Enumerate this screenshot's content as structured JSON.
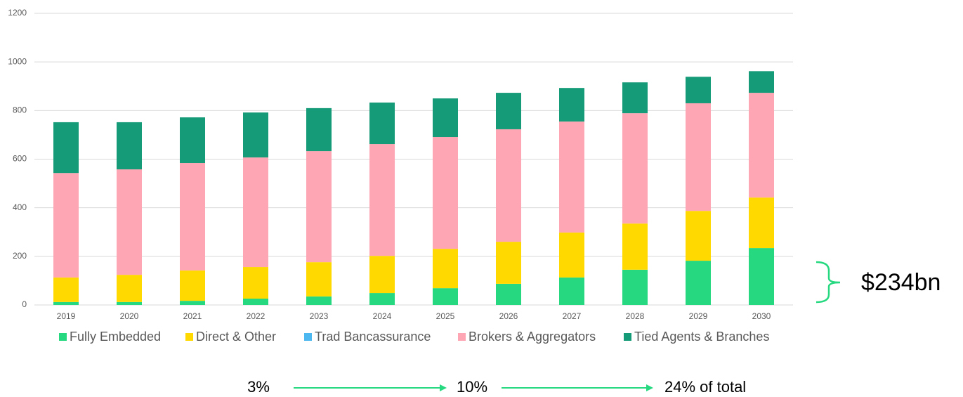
{
  "chart_data": {
    "type": "stacked_bar",
    "categories": [
      "2019",
      "2020",
      "2021",
      "2022",
      "2023",
      "2024",
      "2025",
      "2026",
      "2027",
      "2028",
      "2029",
      "2030"
    ],
    "series": [
      {
        "name": "Fully Embedded",
        "color": "#26d980",
        "values": [
          12,
          12,
          17,
          26,
          35,
          49,
          69,
          87,
          113,
          145,
          182,
          234
        ]
      },
      {
        "name": "Direct & Other",
        "color": "#ffd900",
        "values": [
          101,
          112,
          125,
          130,
          141,
          153,
          162,
          173,
          185,
          190,
          205,
          208
        ]
      },
      {
        "name": "Trad Bancassurance",
        "color": "#4db8f0",
        "values": [
          0,
          0,
          0,
          0,
          0,
          0,
          0,
          0,
          0,
          0,
          0,
          0
        ]
      },
      {
        "name": "Brokers & Aggregators",
        "color": "#ffa6b5",
        "values": [
          430,
          434,
          442,
          451,
          457,
          460,
          460,
          463,
          457,
          454,
          443,
          431
        ]
      },
      {
        "name": "Tied Agents & Branches",
        "color": "#159b77",
        "values": [
          209,
          194,
          188,
          185,
          177,
          171,
          159,
          150,
          138,
          127,
          109,
          89
        ]
      }
    ],
    "ylim": [
      0,
      1200
    ],
    "yticks": [
      0,
      200,
      400,
      600,
      800,
      1000,
      1200
    ],
    "grid": true,
    "annotations": [
      "$234bn",
      "3%",
      "10%",
      "24% of total"
    ]
  }
}
